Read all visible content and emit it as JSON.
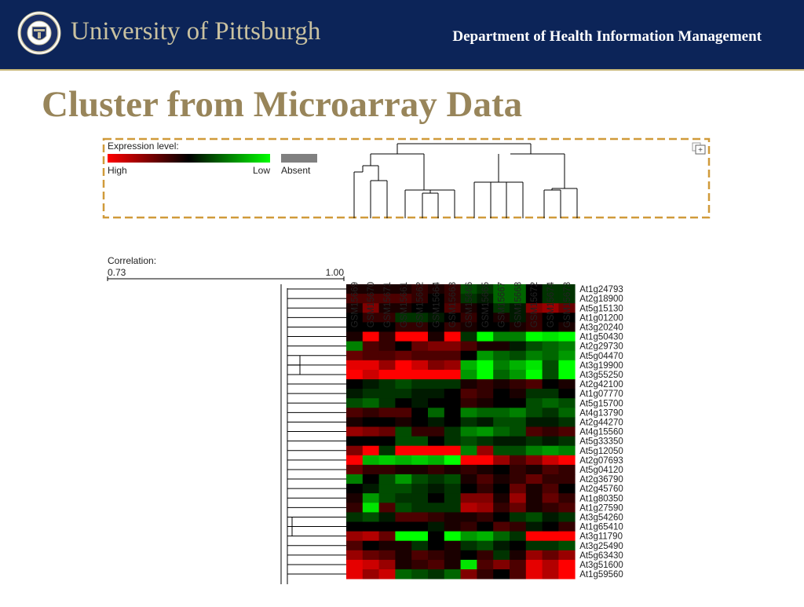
{
  "header": {
    "university": "University of Pittsburgh",
    "department": "Department of Health Information Management"
  },
  "slide": {
    "title": "Cluster from Microarray Data"
  },
  "figure": {
    "legend": {
      "title": "Expression level:",
      "high_label": "High",
      "low_label": "Low",
      "absent_label": "Absent"
    },
    "correlation": {
      "label": "Correlation:",
      "min_label": "0.73",
      "max_label": "1.00"
    },
    "samples": [
      "GSM15669",
      "GSM15670",
      "GSM15671",
      "GSM15661",
      "GSM15662",
      "GSM15664",
      "GSM15663",
      "GSM15666",
      "GSM15665",
      "GSM15667",
      "GSM15668",
      "GSM15672",
      "GSM15674",
      "GSM15673"
    ],
    "genes": [
      "At1g24793",
      "At2g18900",
      "At5g15130",
      "At1g01200",
      "At3g20240",
      "At1g50430",
      "At2g29730",
      "At5g04470",
      "At3g19900",
      "At3g55250",
      "At2g42100",
      "At1g07770",
      "At5g15700",
      "At4g13790",
      "At2g44270",
      "At4g15560",
      "At5g33350",
      "At5g12050",
      "At2g07693",
      "At5g04120",
      "At2g36790",
      "At2g45760",
      "At1g80350",
      "At1g27590",
      "At3g54260",
      "At1g65410",
      "At3g11790",
      "At3g25490",
      "At5g63430",
      "At3g51600",
      "At1g59560"
    ],
    "colors": {
      "high": "#ff0000",
      "zero": "#000000",
      "low": "#00ff00",
      "absent": "#808080",
      "selection_box": "#d09a3a"
    },
    "heatmap": [
      [
        0.1,
        0.1,
        0.1,
        0.1,
        0.2,
        0.1,
        0.2,
        -0.3,
        -0.2,
        -0.4,
        -0.4,
        0.0,
        -0.2,
        -0.2
      ],
      [
        0.3,
        0.3,
        0.3,
        0.3,
        0.2,
        0.0,
        0.2,
        -0.2,
        -0.1,
        -0.4,
        -0.4,
        0.0,
        -0.2,
        -0.2
      ],
      [
        0.1,
        0.5,
        0.1,
        0.1,
        0.0,
        0.0,
        0.3,
        0.1,
        0.0,
        -0.2,
        -0.1,
        0.5,
        0.6,
        0.4
      ],
      [
        0.0,
        0.2,
        0.2,
        -0.2,
        -0.2,
        -0.1,
        0.0,
        0.2,
        0.0,
        0.1,
        -0.1,
        0.2,
        0.0,
        0.0
      ],
      [
        0.0,
        0.0,
        0.0,
        0.2,
        0.2,
        0.0,
        0.2,
        0.1,
        0.0,
        0.0,
        0.1,
        0.2,
        0.0,
        0.1
      ],
      [
        0.1,
        1.0,
        0.2,
        1.0,
        1.0,
        0.1,
        1.0,
        -0.2,
        -1.0,
        -0.5,
        -0.5,
        -1.0,
        -0.9,
        -1.0
      ],
      [
        -0.5,
        0.3,
        0.2,
        0.0,
        0.4,
        0.5,
        0.5,
        0.3,
        0.1,
        0.1,
        -0.1,
        -0.3,
        -0.4,
        -0.5
      ],
      [
        0.4,
        0.3,
        0.3,
        0.4,
        0.3,
        0.3,
        0.3,
        0.0,
        -0.6,
        -0.4,
        -0.3,
        -0.5,
        -0.4,
        -0.6
      ],
      [
        0.9,
        0.9,
        0.6,
        1.0,
        0.8,
        0.5,
        0.6,
        -0.7,
        -1.0,
        -0.5,
        -0.7,
        -0.9,
        -0.3,
        -1.0
      ],
      [
        1.0,
        0.8,
        1.0,
        1.0,
        1.0,
        1.0,
        1.0,
        -0.6,
        -1.0,
        -0.4,
        -0.6,
        -1.0,
        -0.3,
        -1.0
      ],
      [
        0.0,
        -0.1,
        -0.2,
        -0.3,
        -0.2,
        -0.2,
        -0.2,
        0.1,
        0.2,
        0.1,
        0.2,
        0.3,
        0.0,
        0.1
      ],
      [
        -0.1,
        -0.2,
        -0.2,
        -0.2,
        -0.1,
        -0.1,
        0.0,
        0.3,
        0.2,
        0.0,
        0.1,
        -0.2,
        -0.2,
        0.0
      ],
      [
        -0.3,
        -0.4,
        -0.2,
        0.0,
        -0.1,
        0.0,
        0.0,
        0.2,
        0.1,
        0.0,
        0.0,
        -0.3,
        -0.4,
        -0.3
      ],
      [
        0.3,
        0.2,
        0.3,
        0.3,
        0.0,
        -0.4,
        0.0,
        -0.5,
        -0.4,
        -0.4,
        -0.5,
        -0.3,
        -0.2,
        -0.4
      ],
      [
        0.1,
        0.0,
        0.0,
        0.1,
        0.0,
        -0.1,
        0.0,
        -0.2,
        -0.1,
        -0.3,
        -0.3,
        -0.1,
        -0.1,
        -0.2
      ],
      [
        0.6,
        0.5,
        0.4,
        -0.3,
        0.2,
        0.2,
        -0.2,
        -0.5,
        -0.6,
        -0.4,
        -0.3,
        0.3,
        0.2,
        0.3
      ],
      [
        0.0,
        0.0,
        0.0,
        -0.3,
        -0.3,
        0.0,
        -0.2,
        -0.3,
        -0.2,
        -0.1,
        -0.1,
        -0.2,
        -0.1,
        -0.2
      ],
      [
        0.5,
        1.0,
        -0.2,
        1.0,
        1.0,
        1.0,
        1.0,
        -0.5,
        0.6,
        -0.3,
        -0.3,
        -0.5,
        -0.6,
        -0.5
      ],
      [
        1.0,
        -0.7,
        -0.8,
        -0.7,
        -0.8,
        -0.7,
        -1.0,
        1.0,
        1.0,
        0.6,
        0.3,
        0.5,
        0.8,
        1.0
      ],
      [
        0.4,
        0.2,
        0.2,
        0.1,
        0.1,
        0.2,
        0.1,
        0.2,
        0.1,
        0.0,
        0.2,
        0.1,
        0.3,
        0.2
      ],
      [
        -0.5,
        0.0,
        -0.3,
        -0.6,
        -0.3,
        -0.2,
        -0.3,
        0.1,
        0.3,
        0.1,
        0.2,
        0.4,
        0.2,
        0.2
      ],
      [
        0.0,
        -0.1,
        -0.3,
        -0.3,
        -0.2,
        -0.1,
        -0.2,
        0.0,
        0.2,
        0.0,
        0.4,
        0.1,
        0.3,
        0.0
      ],
      [
        0.1,
        -0.6,
        -0.3,
        -0.2,
        -0.2,
        0.0,
        -0.2,
        0.5,
        0.5,
        0.1,
        0.6,
        0.1,
        0.4,
        0.2
      ],
      [
        0.2,
        -0.9,
        0.3,
        -0.3,
        -0.2,
        -0.2,
        -0.2,
        0.7,
        0.6,
        0.2,
        0.4,
        0.1,
        0.2,
        0.3
      ],
      [
        -0.2,
        -0.3,
        -0.1,
        0.3,
        0.3,
        0.2,
        0.1,
        0.1,
        0.2,
        0.0,
        -0.2,
        -0.3,
        -0.1,
        -0.2
      ],
      [
        0.0,
        0.0,
        0.0,
        0.0,
        0.0,
        -0.1,
        0.1,
        0.2,
        0.0,
        0.3,
        0.2,
        -0.1,
        0.0,
        0.2
      ],
      [
        0.6,
        0.7,
        0.4,
        -1.0,
        -1.0,
        0.0,
        -1.0,
        -0.6,
        -0.7,
        -0.4,
        -0.2,
        1.0,
        1.0,
        1.0
      ],
      [
        0.3,
        0.0,
        0.1,
        0.1,
        -0.2,
        0.0,
        0.1,
        -0.2,
        -0.3,
        -0.1,
        0.0,
        -0.2,
        -0.2,
        -0.3
      ],
      [
        0.6,
        0.4,
        0.3,
        0.1,
        0.3,
        0.2,
        0.1,
        0.0,
        0.2,
        -0.2,
        0.1,
        0.6,
        0.4,
        0.6
      ],
      [
        0.9,
        0.8,
        0.6,
        0.1,
        0.2,
        0.3,
        0.1,
        -0.9,
        0.3,
        0.5,
        0.3,
        0.9,
        0.7,
        1.0
      ],
      [
        0.9,
        0.6,
        0.8,
        -0.4,
        -0.3,
        -0.2,
        -0.4,
        0.5,
        0.2,
        0.0,
        0.3,
        0.9,
        0.7,
        1.0
      ]
    ]
  }
}
